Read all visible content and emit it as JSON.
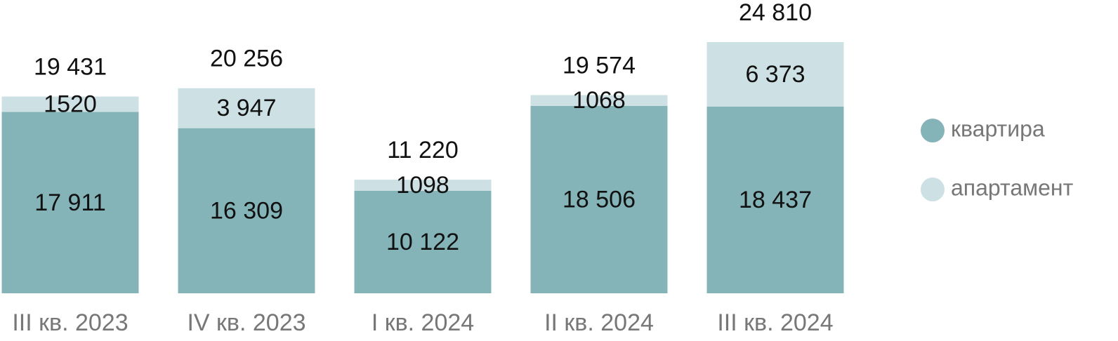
{
  "chart_data": {
    "type": "stacked_bar",
    "categories": [
      "III кв. 2023",
      "IV кв. 2023",
      "I кв. 2024",
      "II кв. 2024",
      "III кв. 2024"
    ],
    "series": [
      {
        "name": "квартира",
        "color": "#84b4b8",
        "values": [
          17911,
          16309,
          10122,
          18506,
          18437
        ],
        "value_labels": [
          "17 911",
          "16 309",
          "10 122",
          "18 506",
          "18 437"
        ]
      },
      {
        "name": "апартамент",
        "color": "#cde0e3",
        "values": [
          1520,
          3947,
          1098,
          1068,
          6373
        ],
        "value_labels": [
          "1520",
          "3 947",
          "1098",
          "1068",
          "6 373"
        ]
      }
    ],
    "totals": {
      "values": [
        19431,
        20256,
        11220,
        19574,
        24810
      ],
      "value_labels": [
        "19 431",
        "20 256",
        "11 220",
        "19 574",
        "24 810"
      ]
    },
    "legend": "right"
  }
}
